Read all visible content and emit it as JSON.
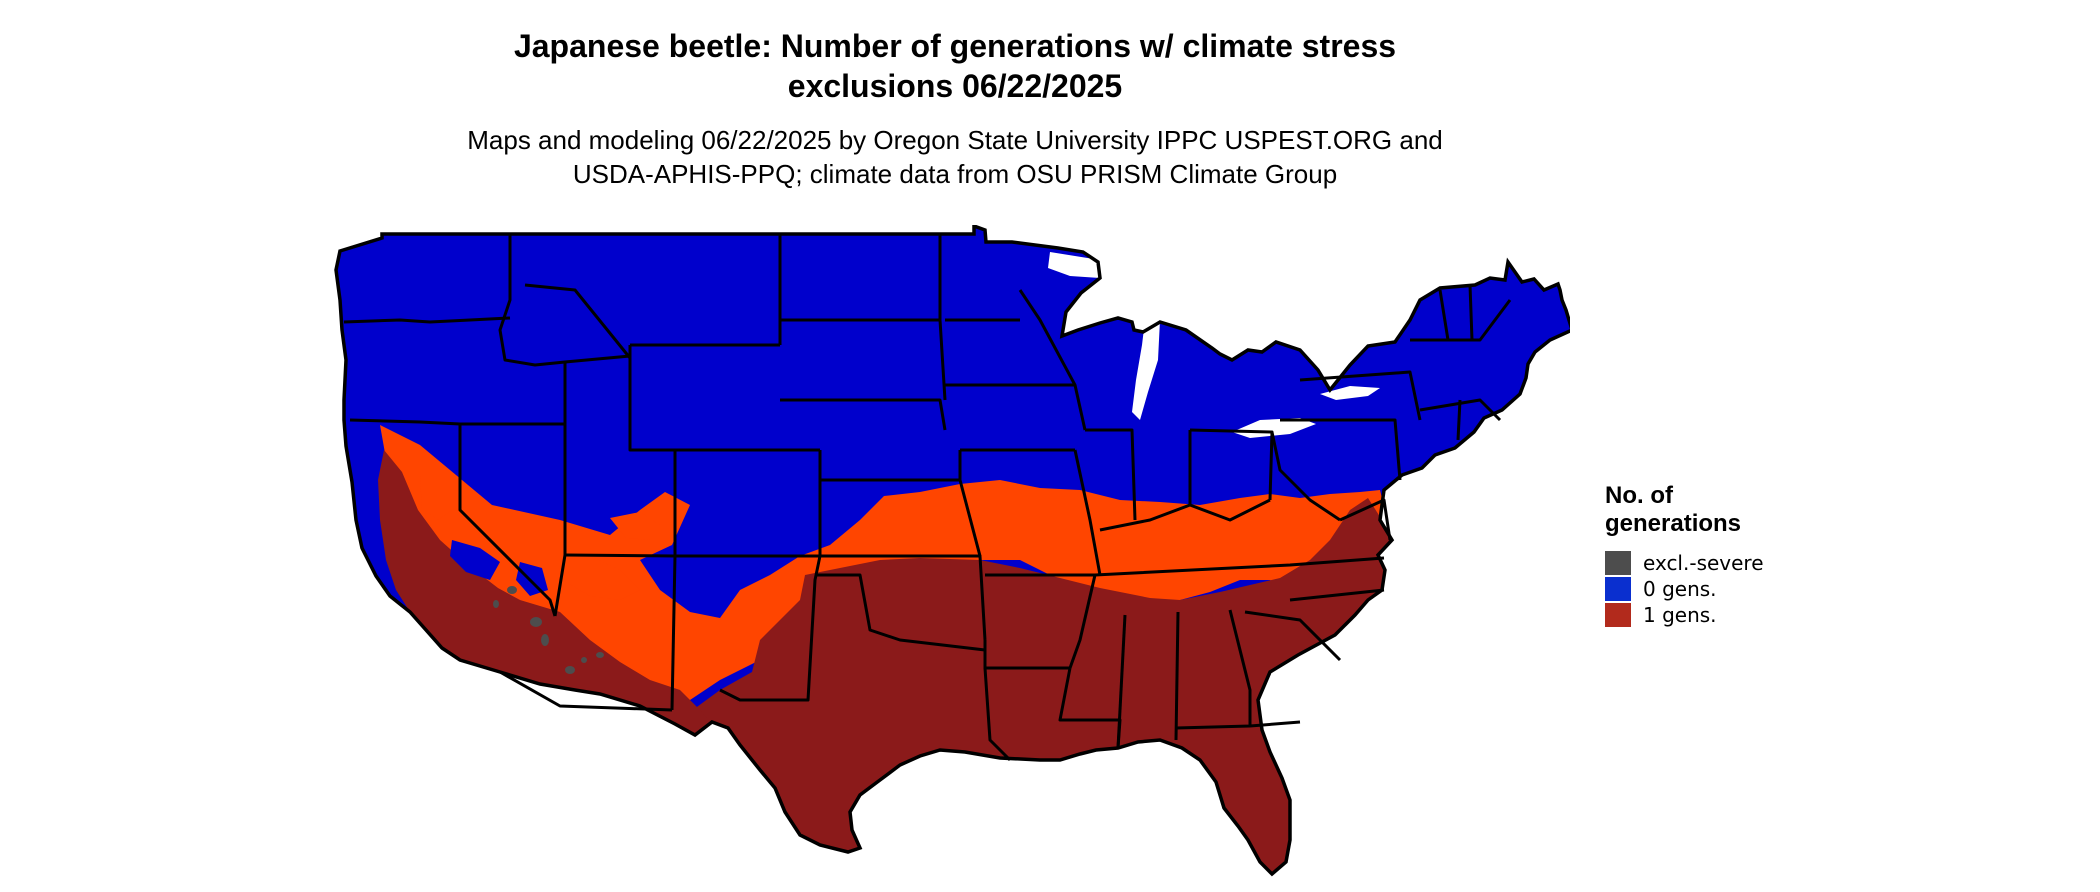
{
  "title": {
    "line1": "Japanese beetle: Number of generations w/ climate stress",
    "line2": "exclusions 06/22/2025"
  },
  "subtitle": {
    "line1": "Maps and modeling 06/22/2025 by Oregon State University IPPC USPEST.ORG and",
    "line2": "USDA-APHIS-PPQ; climate data from OSU PRISM Climate Group"
  },
  "map": {
    "region": "Contiguous United States",
    "colors": {
      "zero_gens": "#0000CC",
      "one_gen": "#8B1A1A",
      "transition": "#FF4500",
      "excl_severe": "#4D4D4D",
      "state_borders": "#000000"
    }
  },
  "legend": {
    "title_line1": "No. of",
    "title_line2": "generations",
    "items": [
      {
        "label": "excl.-severe",
        "color": "#4D4D4D"
      },
      {
        "label": "0 gens.",
        "color": "#0A2FCF"
      },
      {
        "label": "1 gens.",
        "color": "#B22A1C"
      }
    ]
  }
}
